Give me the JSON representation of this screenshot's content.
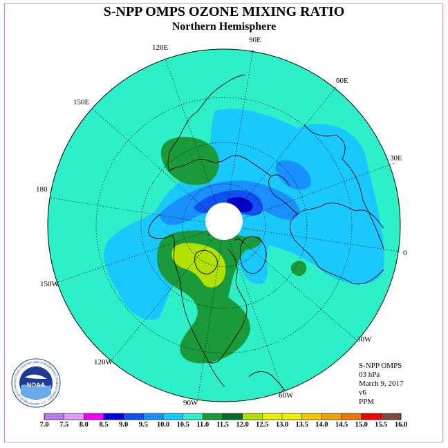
{
  "header": {
    "title": "S-NPP OMPS OZONE MIXING RATIO",
    "subtitle": "Northern Hemisphere"
  },
  "map": {
    "projection": "north-polar-stereographic",
    "longitude_labels": [
      "90E",
      "60E",
      "30E",
      "0",
      "30W",
      "60W",
      "90W",
      "120W",
      "150W",
      "180",
      "150E",
      "120E"
    ],
    "colors": {
      "background_field": "#2ef0c8",
      "light_blue": "#18c8ff",
      "mid_blue": "#1890ff",
      "blue": "#1050f0",
      "dark_blue": "#0000c8",
      "green": "#1a9a3a",
      "dark_green": "#0a6a2a",
      "yellow_green": "#b2e000",
      "no_data": "#ffffff",
      "coastline": "#000000"
    }
  },
  "info": {
    "line1": "S-NPP OMPS",
    "line2": "03 hPa",
    "line3": "March 9, 2017",
    "line4": "v6",
    "line5": "PPM"
  },
  "colorbar": {
    "unit": "PPM",
    "ticks": [
      "7.0",
      "7.5",
      "8.0",
      "8.5",
      "9.0",
      "9.5",
      "10.0",
      "10.5",
      "11.0",
      "11.5",
      "12.0",
      "12.5",
      "13.0",
      "13.5",
      "14.0",
      "14.5",
      "15.0",
      "15.5",
      "16.0"
    ],
    "colors": [
      "#b87af0",
      "#dda0f0",
      "#f000f0",
      "#0000e0",
      "#1050f0",
      "#1890ff",
      "#18c8ff",
      "#2ef0c8",
      "#1a9a3a",
      "#0a6a2a",
      "#b2e000",
      "#e6f000",
      "#f0f000",
      "#f0c800",
      "#f0a000",
      "#f07800",
      "#f00000",
      "#7a4a3a"
    ]
  },
  "logo": {
    "text": "NOAA",
    "ring_text": "NATIONAL OCEANIC AND ATMOSPHERIC ADMINISTRATION · U.S. DEPARTMENT OF COMMERCE"
  }
}
